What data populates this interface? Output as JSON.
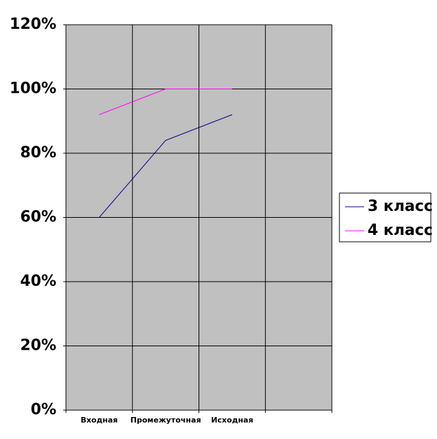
{
  "chart_data": {
    "type": "line",
    "categories": [
      "Входная",
      "Промежуточная",
      "Исходная",
      null
    ],
    "series": [
      {
        "name": "3 класс",
        "color": "#000080",
        "values": [
          60,
          84,
          92,
          null
        ]
      },
      {
        "name": "4 класс",
        "color": "#ff00ff",
        "values": [
          92,
          100,
          100,
          null
        ]
      }
    ],
    "ylim": [
      0,
      120
    ],
    "yticks": [
      {
        "value": 0,
        "label": "0%"
      },
      {
        "value": 20,
        "label": "20%"
      },
      {
        "value": 40,
        "label": "40%"
      },
      {
        "value": 60,
        "label": "60%"
      },
      {
        "value": 80,
        "label": "80%"
      },
      {
        "value": 100,
        "label": "100%"
      },
      {
        "value": 120,
        "label": "120%"
      }
    ],
    "grid": true,
    "plot_background": "#c0c0c0",
    "legend": "right"
  }
}
